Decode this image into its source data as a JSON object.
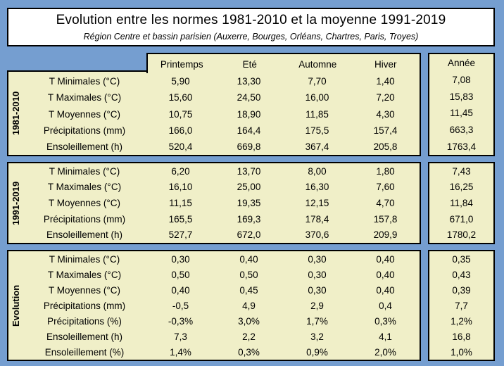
{
  "title": "Evolution entre les normes 1981-2010 et la moyenne 1991-2019",
  "subtitle": "Région Centre et bassin parisien (Auxerre, Bourges, Orléans, Chartres, Paris, Troyes)",
  "colors": {
    "background": "#759ED0",
    "cell_fill": "#F0EFC8",
    "title_fill": "#FFFFFF",
    "border": "#000000",
    "text": "#000000"
  },
  "chart_data": {
    "type": "table",
    "season_columns": [
      "Printemps",
      "Eté",
      "Automne",
      "Hiver"
    ],
    "year_column": "Année",
    "sections": [
      {
        "group": "1981-2010",
        "rows": [
          {
            "label": "T Minimales (°C)",
            "values": [
              "5,90",
              "13,30",
              "7,70",
              "1,40"
            ],
            "year": "7,08"
          },
          {
            "label": "T Maximales (°C)",
            "values": [
              "15,60",
              "24,50",
              "16,00",
              "7,20"
            ],
            "year": "15,83"
          },
          {
            "label": "T Moyennes (°C)",
            "values": [
              "10,75",
              "18,90",
              "11,85",
              "4,30"
            ],
            "year": "11,45"
          },
          {
            "label": "Précipitations (mm)",
            "values": [
              "166,0",
              "164,4",
              "175,5",
              "157,4"
            ],
            "year": "663,3"
          },
          {
            "label": "Ensoleillement (h)",
            "values": [
              "520,4",
              "669,8",
              "367,4",
              "205,8"
            ],
            "year": "1763,4"
          }
        ]
      },
      {
        "group": "1991-2019",
        "rows": [
          {
            "label": "T Minimales (°C)",
            "values": [
              "6,20",
              "13,70",
              "8,00",
              "1,80"
            ],
            "year": "7,43"
          },
          {
            "label": "T Maximales (°C)",
            "values": [
              "16,10",
              "25,00",
              "16,30",
              "7,60"
            ],
            "year": "16,25"
          },
          {
            "label": "T Moyennes (°C)",
            "values": [
              "11,15",
              "19,35",
              "12,15",
              "4,70"
            ],
            "year": "11,84"
          },
          {
            "label": "Précipitations (mm)",
            "values": [
              "165,5",
              "169,3",
              "178,4",
              "157,8"
            ],
            "year": "671,0"
          },
          {
            "label": "Ensoleillement (h)",
            "values": [
              "527,7",
              "672,0",
              "370,6",
              "209,9"
            ],
            "year": "1780,2"
          }
        ]
      },
      {
        "group": "Evolution",
        "rows": [
          {
            "label": "T Minimales (°C)",
            "values": [
              "0,30",
              "0,40",
              "0,30",
              "0,40"
            ],
            "year": "0,35"
          },
          {
            "label": "T Maximales (°C)",
            "values": [
              "0,50",
              "0,50",
              "0,30",
              "0,40"
            ],
            "year": "0,43"
          },
          {
            "label": "T Moyennes (°C)",
            "values": [
              "0,40",
              "0,45",
              "0,30",
              "0,40"
            ],
            "year": "0,39"
          },
          {
            "label": "Précipitations (mm)",
            "values": [
              "-0,5",
              "4,9",
              "2,9",
              "0,4"
            ],
            "year": "7,7"
          },
          {
            "label": "Précipitations (%)",
            "values": [
              "-0,3%",
              "3,0%",
              "1,7%",
              "0,3%"
            ],
            "year": "1,2%"
          },
          {
            "label": "Ensoleillement (h)",
            "values": [
              "7,3",
              "2,2",
              "3,2",
              "4,1"
            ],
            "year": "16,8"
          },
          {
            "label": "Ensoleillement (%)",
            "values": [
              "1,4%",
              "0,3%",
              "0,9%",
              "2,0%"
            ],
            "year": "1,0%"
          }
        ]
      }
    ]
  }
}
